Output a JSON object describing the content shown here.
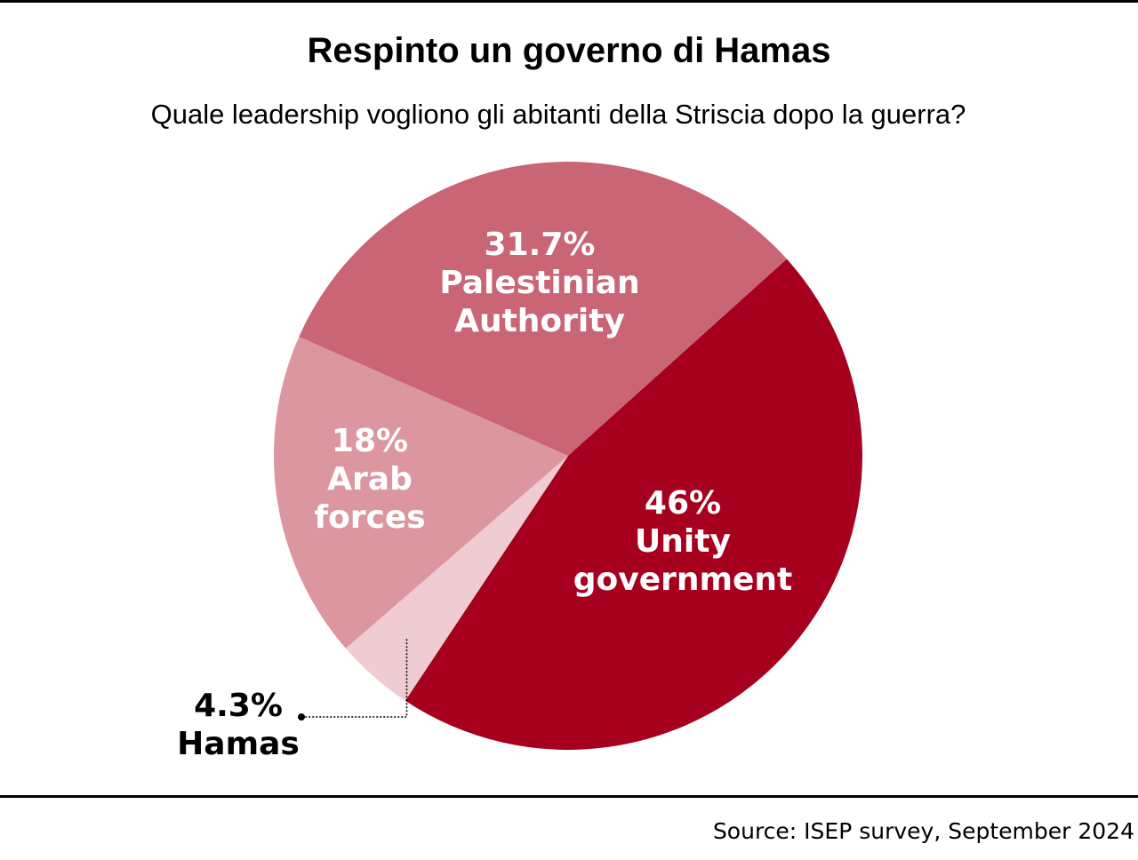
{
  "title": "Respinto un governo di Hamas",
  "subtitle": "Quale leadership vogliono gli abitanti della Striscia dopo la guerra?",
  "source": "Source: ISEP survey, September 2024",
  "chart_data": {
    "type": "pie",
    "title": "Respinto un governo di Hamas",
    "subtitle": "Quale leadership vogliono gli abitanti della Striscia dopo la guerra?",
    "legend": "none",
    "slices": [
      {
        "label": "Unity government",
        "lines": [
          "Unity",
          "government"
        ],
        "value": 46,
        "value_label": "46%",
        "color": "#a6001e",
        "text_color": "#ffffff"
      },
      {
        "label": "Hamas",
        "lines": [
          "Hamas"
        ],
        "value": 4.3,
        "value_label": "4.3%",
        "color": "#efccd2",
        "text_color": "#000000",
        "callout": true
      },
      {
        "label": "Arab forces",
        "lines": [
          "Arab",
          "forces"
        ],
        "value": 18,
        "value_label": "18%",
        "color": "#dc96a0",
        "text_color": "#ffffff"
      },
      {
        "label": "Palestinian Authority",
        "lines": [
          "Palestinian",
          "Authority"
        ],
        "value": 31.7,
        "value_label": "31.7%",
        "color": "#c96575",
        "text_color": "#ffffff"
      }
    ]
  }
}
